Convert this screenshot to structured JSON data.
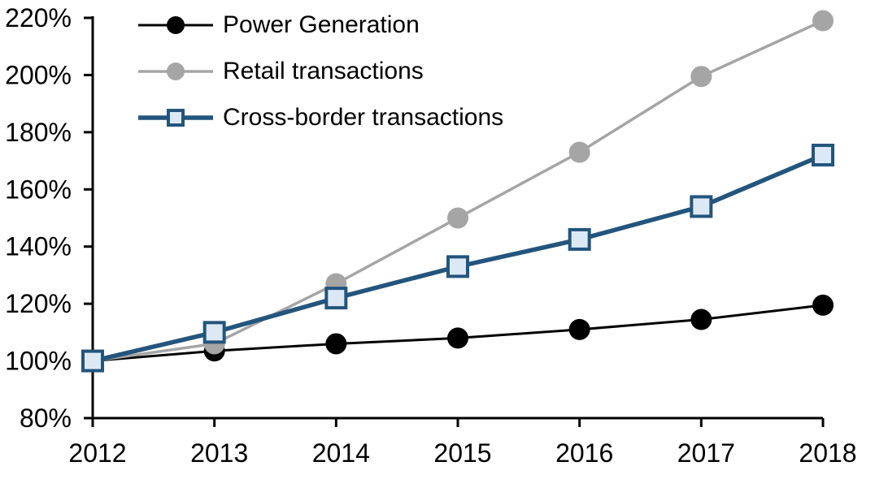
{
  "chart_data": {
    "type": "line",
    "title": "",
    "x": [
      "2012",
      "2013",
      "2014",
      "2015",
      "2016",
      "2017",
      "2018"
    ],
    "y_axis": {
      "min": 80,
      "max": 220,
      "tick_step": 20,
      "tick_labels": [
        "80%",
        "100%",
        "120%",
        "140%",
        "160%",
        "180%",
        "200%",
        "220%"
      ],
      "unit": "percent_indexed_2012_100"
    },
    "grid": false,
    "legend_position": "top-left-inside",
    "background_color": "#FFFFFF",
    "axis_color": "#000000",
    "series": [
      {
        "name": "Power Generation",
        "color": "#000000",
        "marker": "circle",
        "marker_fill": "#000000",
        "line_width": 3,
        "values": [
          100,
          103.5,
          106,
          108,
          111,
          114.5,
          119.5
        ]
      },
      {
        "name": "Retail transactions",
        "color": "#A5A5A5",
        "marker": "circle",
        "marker_fill": "#A5A5A5",
        "line_width": 3.5,
        "values": [
          100,
          106,
          127,
          150,
          173,
          199.5,
          219
        ]
      },
      {
        "name": "Cross-border transactions",
        "color": "#23557D",
        "marker": "square",
        "marker_fill": "#DCE9F5",
        "line_width": 5.5,
        "values": [
          100,
          110,
          122,
          133,
          142.5,
          154,
          172
        ]
      }
    ]
  }
}
